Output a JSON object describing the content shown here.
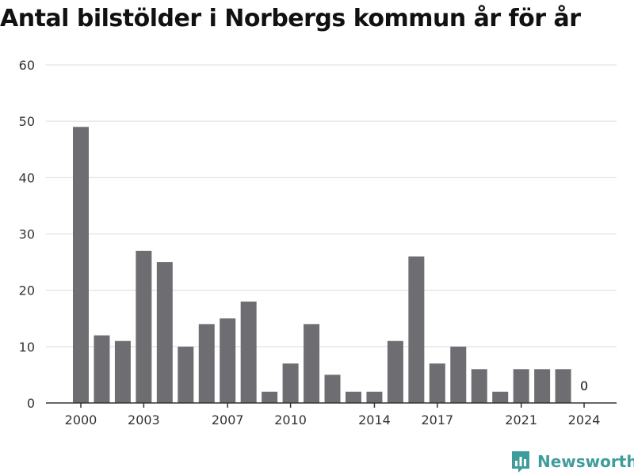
{
  "title": "Antal bilstölder i Norbergs kommun år för år",
  "brand": {
    "name": "Newsworthy",
    "logo_icon": "bar-chart-speech-bubble-icon",
    "color": "#3e9d9b"
  },
  "chart_data": {
    "type": "bar",
    "title": "Antal bilstölder i Norbergs kommun år för år",
    "xlabel": "",
    "ylabel": "",
    "x": [
      2000,
      2001,
      2002,
      2003,
      2004,
      2005,
      2006,
      2007,
      2008,
      2009,
      2010,
      2011,
      2012,
      2013,
      2014,
      2015,
      2016,
      2017,
      2018,
      2019,
      2020,
      2021,
      2022,
      2023,
      2024
    ],
    "values": [
      49,
      12,
      11,
      27,
      25,
      10,
      14,
      15,
      18,
      2,
      7,
      14,
      5,
      2,
      2,
      11,
      26,
      7,
      10,
      6,
      2,
      6,
      6,
      6,
      0
    ],
    "x_tick_labels": [
      "2000",
      "2003",
      "2007",
      "2010",
      "2014",
      "2017",
      "2021",
      "2024"
    ],
    "x_tick_values": [
      2000,
      2003,
      2007,
      2010,
      2014,
      2017,
      2021,
      2024
    ],
    "y_ticks": [
      "0",
      "10",
      "20",
      "30",
      "40",
      "50",
      "60"
    ],
    "ylim": [
      0,
      60
    ],
    "grid": true,
    "annotations": [
      {
        "x": 2024,
        "text": "0"
      }
    ],
    "bar_color": "#6e6d72",
    "grid_color": "#dcdcdc",
    "axis_color": "#333333"
  }
}
